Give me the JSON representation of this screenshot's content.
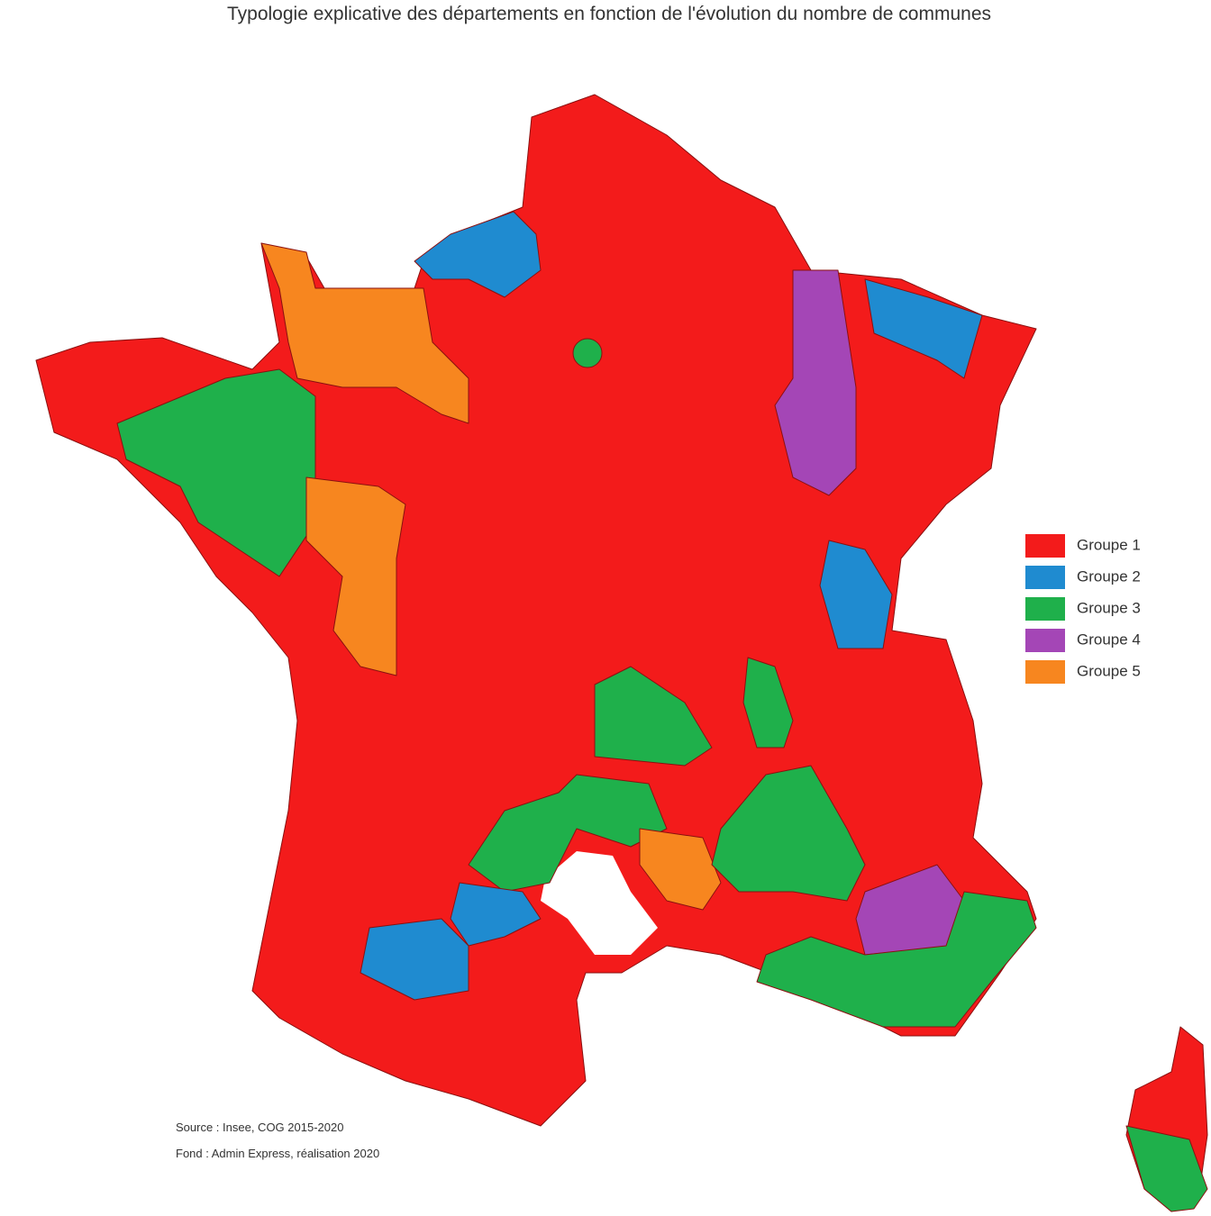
{
  "header": {
    "title": "Typologie explicative des départements en fonction de l'évolution du nombre de communes"
  },
  "legend": [
    {
      "label": "Groupe 1",
      "color": "#f31b1b"
    },
    {
      "label": "Groupe 2",
      "color": "#1f8bd0"
    },
    {
      "label": "Groupe 3",
      "color": "#1fb04b"
    },
    {
      "label": "Groupe 4",
      "color": "#a446b6"
    },
    {
      "label": "Groupe 5",
      "color": "#f7861f"
    }
  ],
  "sources": [
    "Source : Insee, COG 2015-2020",
    "Fond : Admin Express, réalisation 2020"
  ]
}
